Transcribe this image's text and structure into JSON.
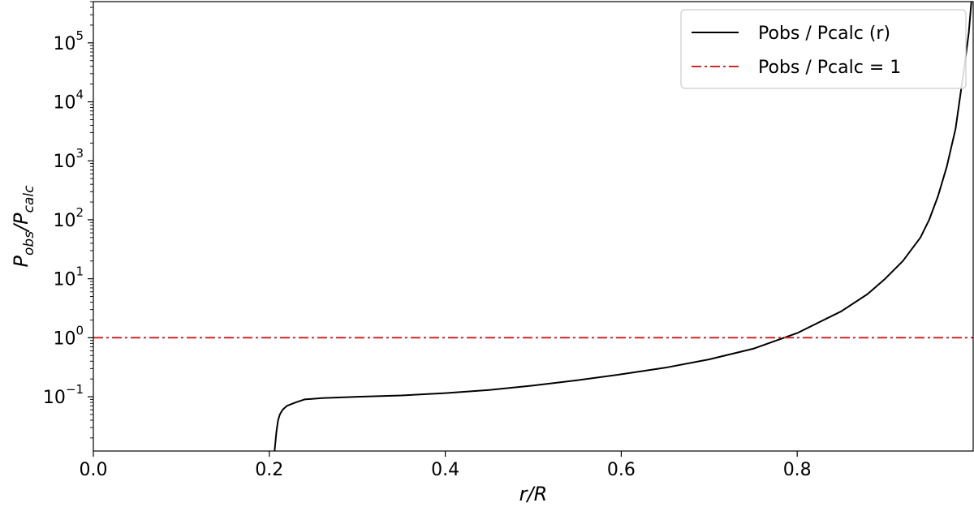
{
  "chart_data": {
    "type": "line",
    "xlabel": "r/R",
    "ylabel": "P_obs/P_calc",
    "ylabel_main": "P",
    "ylabel_sub1": "obs",
    "ylabel_slash": "/P",
    "ylabel_sub2": "calc",
    "xlim": [
      0.0,
      1.0
    ],
    "ylim": [
      0.012,
      500000
    ],
    "yscale": "log",
    "grid": false,
    "legend_position": "top-right",
    "x_ticks": [
      0.0,
      0.2,
      0.4,
      0.6,
      0.8
    ],
    "x_tick_labels": [
      "0.0",
      "0.2",
      "0.4",
      "0.6",
      "0.8"
    ],
    "y_ticks": [
      0.1,
      1,
      10,
      100,
      1000,
      10000,
      100000
    ],
    "y_tick_labels": [
      {
        "base": "10",
        "exp": "−1"
      },
      {
        "base": "10",
        "exp": "0"
      },
      {
        "base": "10",
        "exp": "1"
      },
      {
        "base": "10",
        "exp": "2"
      },
      {
        "base": "10",
        "exp": "3"
      },
      {
        "base": "10",
        "exp": "4"
      },
      {
        "base": "10",
        "exp": "5"
      }
    ],
    "series": [
      {
        "name": "Pobs / Pcalc (r)",
        "color": "#000000",
        "style": "solid",
        "x": [
          0.206,
          0.208,
          0.21,
          0.212,
          0.215,
          0.22,
          0.23,
          0.24,
          0.26,
          0.3,
          0.35,
          0.4,
          0.45,
          0.5,
          0.55,
          0.6,
          0.65,
          0.7,
          0.75,
          0.8,
          0.85,
          0.88,
          0.9,
          0.92,
          0.94,
          0.95,
          0.96,
          0.97,
          0.98,
          0.99,
          0.995,
          0.998
        ],
        "y": [
          0.012,
          0.025,
          0.04,
          0.05,
          0.06,
          0.07,
          0.08,
          0.09,
          0.095,
          0.1,
          0.105,
          0.115,
          0.13,
          0.155,
          0.19,
          0.24,
          0.31,
          0.43,
          0.65,
          1.2,
          2.8,
          5.5,
          10.0,
          20.0,
          50.0,
          100,
          250,
          800,
          3500,
          40000,
          150000,
          500000
        ]
      },
      {
        "name": "Pobs / Pcalc = 1",
        "color": "#d62728",
        "style": "dashdot",
        "x": [
          0.0,
          1.0
        ],
        "y": [
          1,
          1
        ]
      }
    ]
  }
}
